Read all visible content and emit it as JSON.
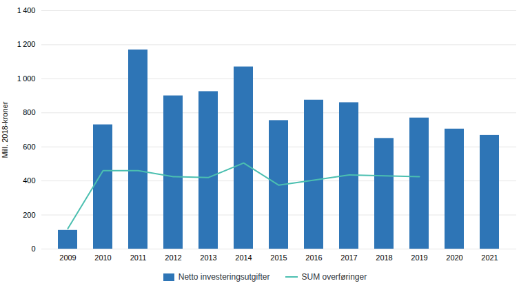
{
  "chart_data": {
    "type": "bar",
    "categories": [
      "2009",
      "2010",
      "2011",
      "2012",
      "2013",
      "2014",
      "2015",
      "2016",
      "2017",
      "2018",
      "2019",
      "2020",
      "2021"
    ],
    "series": [
      {
        "name": "Netto investeringsutgifter",
        "type": "bar",
        "color": "#2E75B6",
        "values": [
          110,
          730,
          1170,
          900,
          925,
          1070,
          755,
          875,
          860,
          650,
          770,
          705,
          668
        ]
      },
      {
        "name": "SUM overføringer",
        "type": "line",
        "color": "#4BBFB0",
        "values": [
          120,
          460,
          460,
          425,
          420,
          505,
          375,
          405,
          435,
          430,
          425,
          null,
          null
        ]
      }
    ],
    "ylabel": "Mill. 2018-kroner",
    "ylim": [
      0,
      1400
    ],
    "yticks": [
      0,
      200,
      400,
      600,
      800,
      {
        "value": 1000,
        "label": "1 000"
      },
      {
        "value": 1200,
        "label": "1 200"
      },
      {
        "value": 1400,
        "label": "1 400"
      }
    ],
    "grid": true,
    "legend": "bottom"
  }
}
